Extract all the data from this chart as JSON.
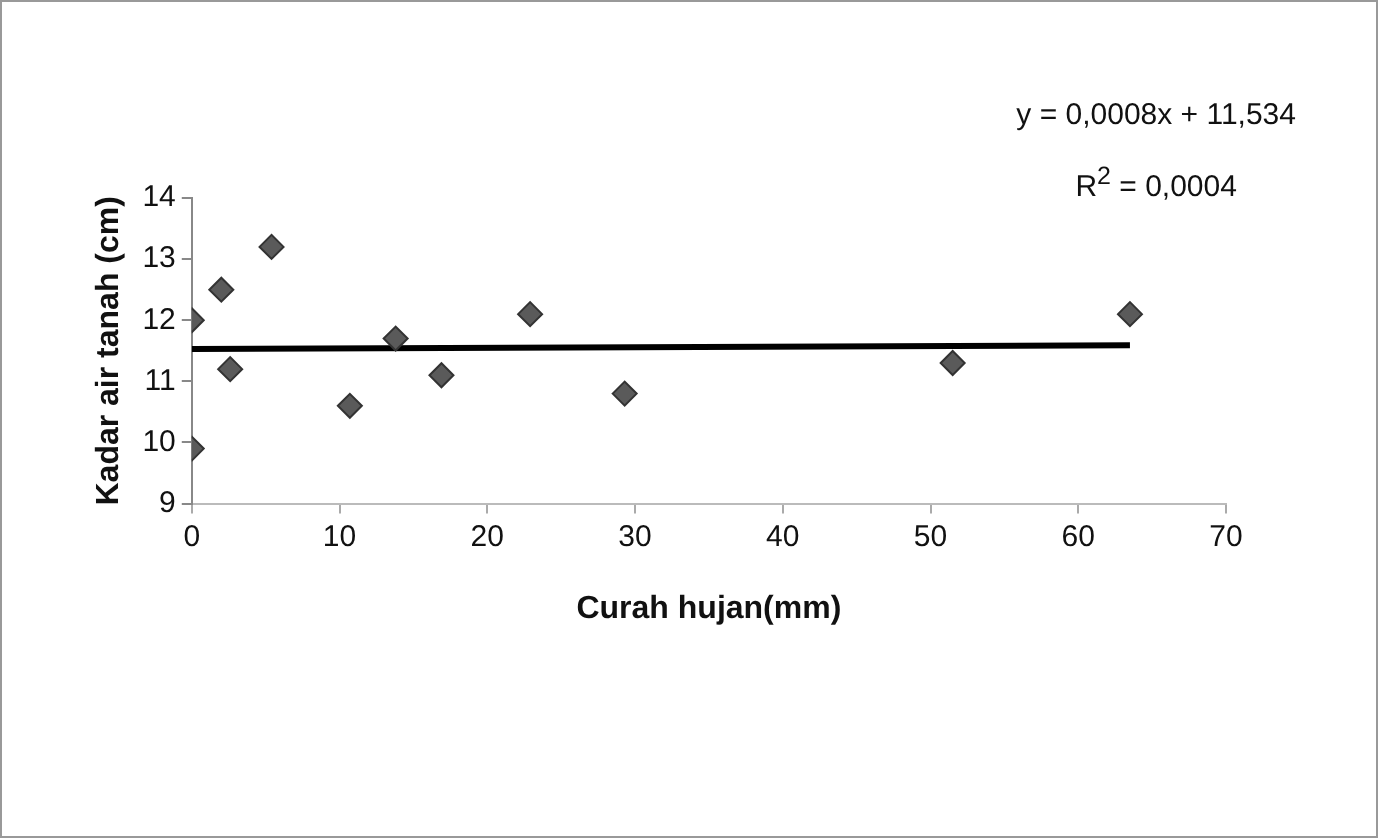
{
  "chart_data": {
    "type": "scatter",
    "xlabel": "Curah hujan(mm)",
    "ylabel": "Kadar air tanah (cm)",
    "x": [
      0,
      2,
      2.6,
      5.4,
      0,
      10.7,
      13.8,
      16.9,
      22.9,
      29.3,
      51.5,
      63.5
    ],
    "series": [
      {
        "color": "#5a5a5a",
        "marker": "diamond",
        "values": [
          12.0,
          12.5,
          11.2,
          13.2,
          9.9,
          10.6,
          11.7,
          11.1,
          12.1,
          10.8,
          11.3,
          12.1
        ]
      },
      {
        "type": "line",
        "color": "#000000",
        "x": [
          0,
          63.5
        ],
        "values": [
          11.53,
          11.59
        ],
        "marker": "none",
        "line_style": "solid"
      }
    ],
    "xlim": [
      0,
      70
    ],
    "xticks": [
      0,
      10,
      20,
      30,
      40,
      50,
      60,
      70
    ],
    "ylim": [
      9,
      14
    ],
    "yticks": [
      9,
      10,
      11,
      12,
      13,
      14
    ],
    "grid": false,
    "legend": false,
    "annotations": [
      "y = 0,0008x + 11,534",
      "R$^{2}$ = 0,0004"
    ]
  }
}
